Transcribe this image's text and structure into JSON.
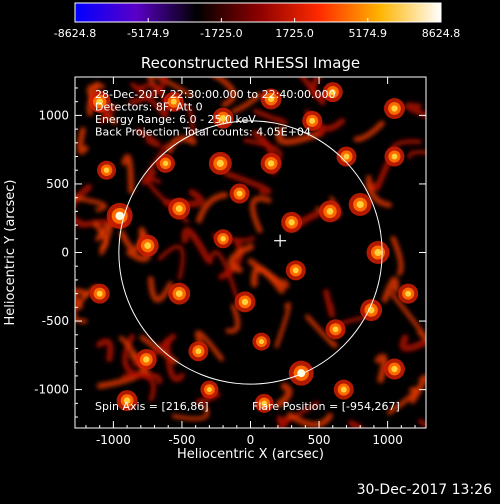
{
  "chart_data": {
    "type": "heatmap",
    "title": "Reconstructed RHESSI Image",
    "xlabel": "Heliocentric X (arcsec)",
    "ylabel": "Heliocentric Y (arcsec)",
    "xlim": [
      -1280,
      1280
    ],
    "ylim": [
      -1280,
      1280
    ],
    "xticks": [
      -1000,
      -500,
      0,
      500,
      1000
    ],
    "yticks": [
      -1000,
      -500,
      0,
      500,
      1000
    ],
    "colorbar": {
      "min": -8624.8,
      "max": 8624.8,
      "ticks": [
        "-8624.8",
        "-5174.9",
        "-1725.0",
        "1725.0",
        "5174.9",
        "8624.8"
      ],
      "colors": [
        "#0000ff",
        "#5a00c8",
        "#000000",
        "#8a0000",
        "#ff2a00",
        "#ffb400",
        "#ffffff"
      ]
    },
    "annotations": [
      "28-Dec-2017 22:30:00.000 to 22:40:00.000",
      "Detectors: 8F, Att 0",
      "Energy Range: 6.0 - 25.0 keV",
      "Back Projection    Total counts: 4.05E+04"
    ],
    "spin_axis_label": "Spin Axis = [216,86]",
    "flare_position_label": "Flare Position = [-954,267]",
    "solar_disk": {
      "center": [
        0,
        0
      ],
      "radius": 960
    },
    "spin_axis": [
      216,
      86
    ],
    "bright_spots": [
      [
        -954,
        267,
        1.0
      ],
      [
        -750,
        50,
        0.8
      ],
      [
        -520,
        320,
        0.8
      ],
      [
        -520,
        -300,
        0.8
      ],
      [
        -220,
        650,
        0.85
      ],
      [
        150,
        650,
        0.75
      ],
      [
        -80,
        430,
        0.7
      ],
      [
        300,
        220,
        0.75
      ],
      [
        580,
        300,
        0.8
      ],
      [
        800,
        350,
        0.85
      ],
      [
        930,
        0,
        0.85
      ],
      [
        880,
        -420,
        0.8
      ],
      [
        370,
        -880,
        0.95
      ],
      [
        -40,
        -360,
        0.75
      ],
      [
        330,
        -130,
        0.7
      ],
      [
        -760,
        -780,
        0.75
      ],
      [
        -1100,
        -300,
        0.7
      ],
      [
        -200,
        980,
        0.75
      ],
      [
        450,
        960,
        0.7
      ],
      [
        -1050,
        600,
        0.65
      ],
      [
        700,
        700,
        0.7
      ],
      [
        1050,
        700,
        0.7
      ],
      [
        -560,
        1100,
        0.7
      ],
      [
        -1100,
        1100,
        0.8
      ],
      [
        150,
        1120,
        0.75
      ],
      [
        600,
        1170,
        0.7
      ],
      [
        1050,
        1050,
        0.75
      ],
      [
        -900,
        -1080,
        0.75
      ],
      [
        100,
        -1100,
        0.65
      ],
      [
        680,
        -1000,
        0.7
      ],
      [
        1050,
        -850,
        0.75
      ],
      [
        1150,
        -300,
        0.7
      ],
      [
        -380,
        -720,
        0.7
      ],
      [
        -200,
        100,
        0.65
      ],
      [
        620,
        -560,
        0.7
      ],
      [
        -620,
        650,
        0.65
      ],
      [
        80,
        -650,
        0.6
      ],
      [
        -300,
        -1000,
        0.6
      ]
    ]
  },
  "footer": {
    "date": "30-Dec-2017 13:26"
  }
}
